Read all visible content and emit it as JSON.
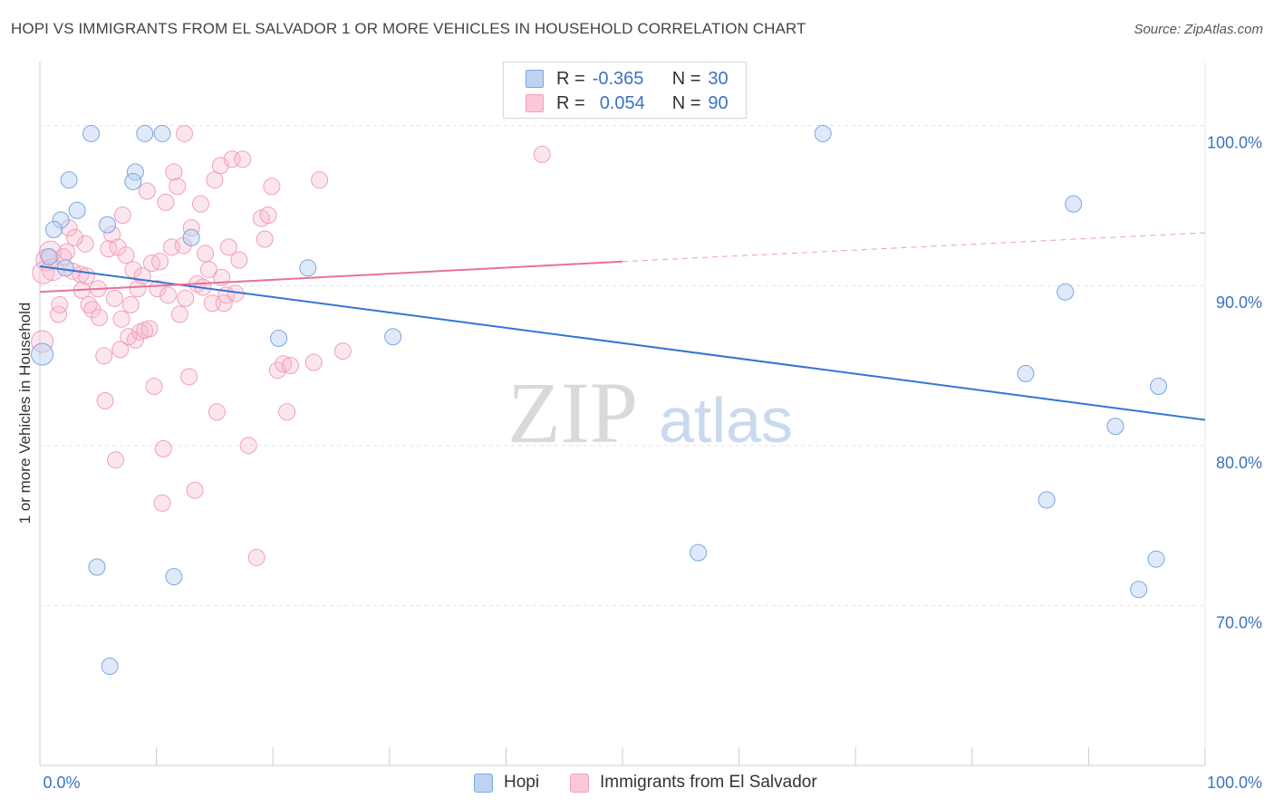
{
  "header": {
    "title": "HOPI VS IMMIGRANTS FROM EL SALVADOR 1 OR MORE VEHICLES IN HOUSEHOLD CORRELATION CHART",
    "source": "Source: ZipAtlas.com"
  },
  "watermark": {
    "zip": "ZIP",
    "atlas": "atlas"
  },
  "legend": {
    "rows": [
      {
        "r_label": "R =",
        "r_value": "-0.365",
        "n_label": "N =",
        "n_value": "30"
      },
      {
        "r_label": "R =",
        "r_value": "0.054",
        "n_label": "N =",
        "n_value": "90"
      }
    ]
  },
  "chart_data": {
    "type": "scatter",
    "title": "HOPI VS IMMIGRANTS FROM EL SALVADOR 1 OR MORE VEHICLES IN HOUSEHOLD CORRELATION CHART",
    "xlabel": "",
    "ylabel": "1 or more Vehicles in Household",
    "xlim": [
      0,
      100
    ],
    "ylim": [
      60,
      104
    ],
    "x_tick_labels": [
      "0.0%",
      "100.0%"
    ],
    "y_ticks": [
      {
        "value": 100,
        "label": "100.0%"
      },
      {
        "value": 90,
        "label": "90.0%"
      },
      {
        "value": 80,
        "label": "80.0%"
      },
      {
        "value": 70,
        "label": "70.0%"
      }
    ],
    "grid": true,
    "legend_position": "top-center",
    "series": [
      {
        "name": "Hopi",
        "color": "#7aa7e0",
        "line_color": "#3574d2",
        "r": -0.365,
        "n": 30,
        "trend": {
          "x0": 0,
          "y0": 91.2,
          "x1": 100,
          "y1": 81.6
        },
        "points": [
          [
            4.4,
            99.5
          ],
          [
            9.0,
            99.5
          ],
          [
            10.5,
            99.5
          ],
          [
            67.2,
            99.5
          ],
          [
            2.5,
            96.6
          ],
          [
            8.2,
            97.1
          ],
          [
            8.0,
            96.5
          ],
          [
            3.2,
            94.7
          ],
          [
            1.8,
            94.1
          ],
          [
            1.2,
            93.5
          ],
          [
            5.8,
            93.8
          ],
          [
            13.0,
            93.0
          ],
          [
            0.8,
            91.8
          ],
          [
            2.2,
            91.1
          ],
          [
            23.0,
            91.1
          ],
          [
            88.7,
            95.1
          ],
          [
            88.0,
            89.6
          ],
          [
            0.2,
            85.7
          ],
          [
            20.5,
            86.7
          ],
          [
            30.3,
            86.8
          ],
          [
            84.6,
            84.5
          ],
          [
            96.0,
            83.7
          ],
          [
            92.3,
            81.2
          ],
          [
            86.4,
            76.6
          ],
          [
            4.9,
            72.4
          ],
          [
            11.5,
            71.8
          ],
          [
            56.5,
            73.3
          ],
          [
            95.8,
            72.9
          ],
          [
            94.3,
            71.0
          ],
          [
            6.0,
            66.2
          ]
        ]
      },
      {
        "name": "Immigrants from El Salvador",
        "color": "#f0a0bb",
        "line_color": "#e8709a",
        "r": 0.054,
        "n": 90,
        "trend": {
          "x0": 0,
          "y0": 89.6,
          "x1": 50,
          "y1": 91.5,
          "dashed_to": {
            "x": 100,
            "y": 93.3
          }
        },
        "points": [
          [
            0.2,
            86.5
          ],
          [
            0.3,
            90.8
          ],
          [
            0.6,
            91.6
          ],
          [
            0.9,
            92.1
          ],
          [
            1.1,
            91.0
          ],
          [
            1.6,
            88.2
          ],
          [
            1.7,
            88.8
          ],
          [
            2.0,
            91.8
          ],
          [
            2.3,
            92.1
          ],
          [
            2.5,
            93.6
          ],
          [
            3.5,
            90.7
          ],
          [
            3.6,
            89.7
          ],
          [
            3.9,
            92.6
          ],
          [
            4.0,
            90.6
          ],
          [
            4.2,
            88.8
          ],
          [
            4.5,
            88.5
          ],
          [
            5.0,
            89.8
          ],
          [
            5.1,
            88.0
          ],
          [
            5.5,
            85.6
          ],
          [
            5.6,
            82.8
          ],
          [
            5.9,
            92.3
          ],
          [
            6.2,
            93.2
          ],
          [
            6.4,
            89.2
          ],
          [
            6.5,
            79.1
          ],
          [
            6.7,
            92.4
          ],
          [
            7.0,
            87.9
          ],
          [
            7.1,
            94.4
          ],
          [
            7.4,
            91.9
          ],
          [
            7.6,
            86.8
          ],
          [
            7.8,
            88.8
          ],
          [
            8.0,
            91.0
          ],
          [
            8.2,
            86.6
          ],
          [
            8.4,
            89.8
          ],
          [
            8.6,
            87.1
          ],
          [
            8.8,
            90.6
          ],
          [
            9.0,
            87.2
          ],
          [
            9.2,
            95.9
          ],
          [
            9.4,
            87.3
          ],
          [
            9.6,
            91.4
          ],
          [
            9.8,
            83.7
          ],
          [
            10.1,
            89.8
          ],
          [
            10.3,
            91.5
          ],
          [
            10.5,
            76.4
          ],
          [
            10.6,
            79.8
          ],
          [
            10.8,
            95.2
          ],
          [
            11.0,
            89.4
          ],
          [
            11.3,
            92.4
          ],
          [
            11.5,
            97.1
          ],
          [
            11.8,
            96.2
          ],
          [
            12.0,
            88.2
          ],
          [
            12.3,
            92.5
          ],
          [
            12.5,
            89.2
          ],
          [
            12.8,
            84.3
          ],
          [
            13.0,
            93.6
          ],
          [
            13.3,
            77.2
          ],
          [
            13.5,
            90.1
          ],
          [
            13.8,
            95.1
          ],
          [
            14.0,
            89.9
          ],
          [
            14.2,
            92.0
          ],
          [
            14.5,
            91.0
          ],
          [
            14.8,
            88.9
          ],
          [
            15.0,
            96.6
          ],
          [
            15.2,
            82.1
          ],
          [
            15.5,
            97.5
          ],
          [
            15.8,
            88.9
          ],
          [
            16.0,
            89.4
          ],
          [
            16.2,
            92.4
          ],
          [
            16.5,
            97.9
          ],
          [
            16.8,
            89.5
          ],
          [
            17.1,
            91.6
          ],
          [
            17.4,
            97.9
          ],
          [
            17.9,
            80.0
          ],
          [
            18.6,
            73.0
          ],
          [
            19.0,
            94.2
          ],
          [
            19.3,
            92.9
          ],
          [
            19.6,
            94.4
          ],
          [
            19.9,
            96.2
          ],
          [
            20.4,
            84.7
          ],
          [
            20.9,
            85.1
          ],
          [
            21.2,
            82.1
          ],
          [
            23.5,
            85.2
          ],
          [
            24.0,
            96.6
          ],
          [
            26.0,
            85.9
          ],
          [
            12.4,
            99.5
          ],
          [
            43.1,
            98.2
          ],
          [
            21.5,
            85.0
          ],
          [
            2.8,
            90.9
          ],
          [
            3.0,
            93.0
          ],
          [
            6.9,
            86.0
          ],
          [
            15.6,
            90.5
          ]
        ]
      }
    ]
  },
  "bottom_legend": [
    {
      "label": "Hopi"
    },
    {
      "label": "Immigrants from El Salvador"
    }
  ]
}
